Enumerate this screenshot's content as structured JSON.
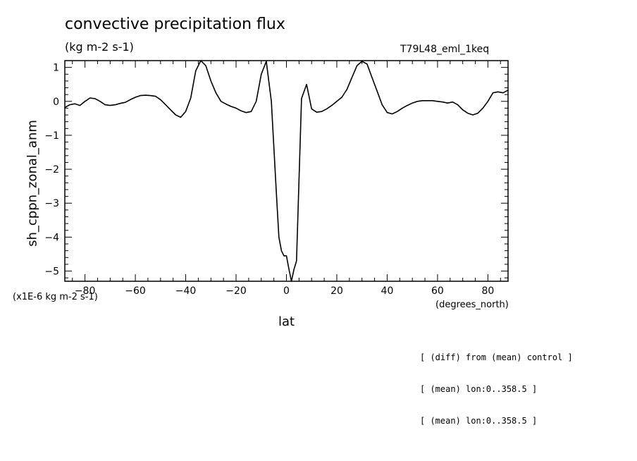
{
  "chart_data": {
    "type": "line",
    "title": "convective precipitation flux",
    "units_label": "(kg m-2 s-1)",
    "run_label": "T79L48_eml_1keq",
    "ylabel": "sh_cppn_zonal_anm",
    "xlabel": "lat",
    "x_units": "(degrees_north)",
    "y_scale_label": "(x1E-6 kg m-2 s-1)",
    "xlim": [
      -88,
      88
    ],
    "ylim": [
      -5.3,
      1.2
    ],
    "x_ticks": [
      -80,
      -60,
      -40,
      -20,
      0,
      20,
      40,
      60,
      80
    ],
    "x_tick_labels": [
      "-80",
      "-60",
      "-40",
      "-20",
      "0",
      "20",
      "40",
      "60",
      "80"
    ],
    "y_ticks": [
      1,
      0,
      -1,
      -2,
      -3,
      -4,
      -5
    ],
    "y_tick_labels": [
      "1",
      "0",
      "-1",
      "-2",
      "-3",
      "-4",
      "-5"
    ],
    "series": [
      {
        "x": [
          -88,
          -86,
          -84,
          -82,
          -80,
          -78,
          -76,
          -74,
          -72,
          -70,
          -68,
          -66,
          -64,
          -62,
          -60,
          -58,
          -56,
          -54,
          -52,
          -50,
          -48,
          -46,
          -44,
          -42,
          -40,
          -38,
          -36,
          -34,
          -32,
          -30,
          -28,
          -26,
          -24,
          -22,
          -20,
          -18,
          -16,
          -14,
          -12,
          -10,
          -8,
          -6,
          -4,
          -3,
          -2,
          -1,
          0,
          1,
          2,
          3,
          4,
          6,
          8,
          10,
          12,
          14,
          16,
          18,
          20,
          22,
          24,
          26,
          28,
          30,
          32,
          34,
          36,
          38,
          40,
          42,
          44,
          46,
          48,
          50,
          52,
          54,
          56,
          58,
          60,
          62,
          64,
          66,
          68,
          70,
          72,
          74,
          76,
          78,
          80,
          82,
          84,
          86,
          88
        ],
        "y": [
          -0.18,
          -0.1,
          -0.07,
          -0.12,
          0.0,
          0.1,
          0.08,
          0.0,
          -0.1,
          -0.12,
          -0.1,
          -0.06,
          -0.03,
          0.05,
          0.12,
          0.17,
          0.18,
          0.17,
          0.15,
          0.05,
          -0.1,
          -0.25,
          -0.4,
          -0.47,
          -0.3,
          0.1,
          0.9,
          1.2,
          1.05,
          0.6,
          0.25,
          0.0,
          -0.08,
          -0.15,
          -0.2,
          -0.28,
          -0.33,
          -0.3,
          0.0,
          0.8,
          1.18,
          0.0,
          -2.7,
          -4.0,
          -4.4,
          -4.55,
          -4.55,
          -4.95,
          -5.3,
          -4.95,
          -4.7,
          0.08,
          0.5,
          -0.22,
          -0.32,
          -0.3,
          -0.22,
          -0.12,
          0.0,
          0.12,
          0.35,
          0.7,
          1.05,
          1.18,
          1.1,
          0.7,
          0.3,
          -0.1,
          -0.33,
          -0.37,
          -0.3,
          -0.2,
          -0.12,
          -0.05,
          0.0,
          0.02,
          0.02,
          0.02,
          0.0,
          -0.02,
          -0.05,
          -0.02,
          -0.1,
          -0.25,
          -0.35,
          -0.4,
          -0.35,
          -0.2,
          0.0,
          0.25,
          0.28,
          0.25,
          0.33
        ]
      }
    ]
  },
  "notes": [
    "[ (diff) from (mean) control ]",
    "[ (mean) lon:0..358.5 ]",
    "[ (mean) lon:0..358.5 ]"
  ]
}
